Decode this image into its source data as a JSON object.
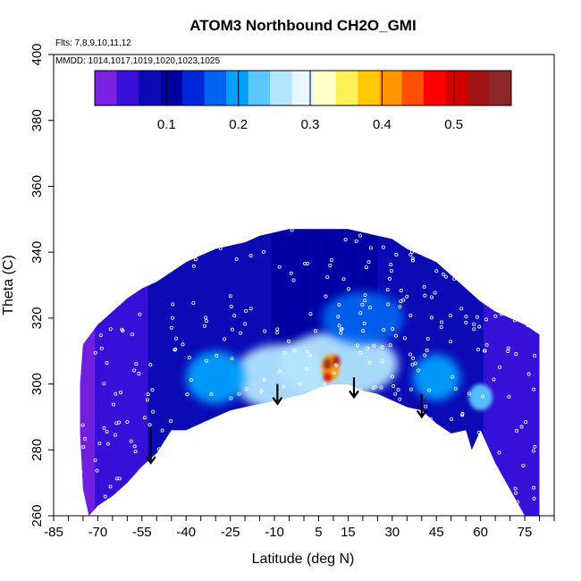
{
  "chart_data": {
    "type": "heatmap",
    "title": "ATOM3 Northbound CH2O_GMI",
    "flights_note": "Flts: 7,8,9,10,11,12",
    "dates_note": "MMDD: 1014,1017,1019,1020,1023,1025",
    "xlabel": "Latitude (deg N)",
    "ylabel": "Theta (C)",
    "xlim": [
      -85,
      85
    ],
    "ylim": [
      260,
      400
    ],
    "x_tick_labels": [
      "-85",
      "-70",
      "-55",
      "-40",
      "-25",
      "-10",
      "5",
      "15",
      "30",
      "45",
      "60",
      "75"
    ],
    "y_tick_labels": [
      "260",
      "280",
      "300",
      "320",
      "340",
      "360",
      "380",
      "400"
    ],
    "colorbar": {
      "range": [
        0,
        0.58
      ],
      "tick_labels": [
        "0.1",
        "0.2",
        "0.3",
        "0.4",
        "0.5"
      ],
      "colors": [
        "#7b1fe0",
        "#3a10d8",
        "#0a0ab4",
        "#0000a0",
        "#0028d8",
        "#0064f0",
        "#00a0ff",
        "#5ac8ff",
        "#b4e6ff",
        "#e8f6ff",
        "#ffffc8",
        "#fff05a",
        "#ffc800",
        "#ff9600",
        "#ff5000",
        "#ff0000",
        "#d20000",
        "#a01414",
        "#8c2828"
      ]
    },
    "boundary_top": [
      [
        -75,
        312
      ],
      [
        -70,
        318
      ],
      [
        -65,
        322
      ],
      [
        -60,
        326
      ],
      [
        -55,
        329
      ],
      [
        -50,
        331
      ],
      [
        -45,
        334
      ],
      [
        -40,
        337
      ],
      [
        -35,
        339
      ],
      [
        -30,
        341
      ],
      [
        -25,
        342
      ],
      [
        -20,
        343
      ],
      [
        -15,
        345
      ],
      [
        -10,
        346
      ],
      [
        -5,
        347
      ],
      [
        0,
        347
      ],
      [
        5,
        347
      ],
      [
        10,
        347
      ],
      [
        15,
        347
      ],
      [
        20,
        346
      ],
      [
        25,
        345
      ],
      [
        30,
        344
      ],
      [
        35,
        341
      ],
      [
        40,
        339
      ],
      [
        45,
        337
      ],
      [
        50,
        333
      ],
      [
        55,
        329
      ],
      [
        60,
        325
      ],
      [
        65,
        322
      ],
      [
        70,
        320
      ],
      [
        75,
        318
      ],
      [
        80,
        315
      ]
    ],
    "boundary_bottom": [
      [
        80,
        260
      ],
      [
        75,
        260
      ],
      [
        70,
        268
      ],
      [
        65,
        276
      ],
      [
        60,
        286
      ],
      [
        57,
        280
      ],
      [
        55,
        286
      ],
      [
        50,
        285
      ],
      [
        45,
        288
      ],
      [
        40,
        292
      ],
      [
        35,
        293
      ],
      [
        30,
        295
      ],
      [
        25,
        297
      ],
      [
        20,
        298
      ],
      [
        15,
        300
      ],
      [
        10,
        300
      ],
      [
        5,
        299
      ],
      [
        0,
        297
      ],
      [
        -5,
        296
      ],
      [
        -10,
        295
      ],
      [
        -15,
        294
      ],
      [
        -20,
        293
      ],
      [
        -25,
        292
      ],
      [
        -30,
        290
      ],
      [
        -35,
        288
      ],
      [
        -40,
        286
      ],
      [
        -45,
        286
      ],
      [
        -50,
        279
      ],
      [
        -55,
        275
      ],
      [
        -60,
        270
      ],
      [
        -65,
        266
      ],
      [
        -70,
        263
      ],
      [
        -73,
        260
      ],
      [
        -75,
        268
      ],
      [
        -76,
        285
      ],
      [
        -76,
        300
      ]
    ],
    "value_blobs": [
      {
        "lat": -8,
        "theta": 302,
        "rx": 16,
        "ry": 10,
        "value": 0.25
      },
      {
        "lat": 12,
        "theta": 306,
        "rx": 20,
        "ry": 10,
        "value": 0.27
      },
      {
        "lat": -30,
        "theta": 302,
        "rx": 10,
        "ry": 8,
        "value": 0.2
      },
      {
        "lat": 45,
        "theta": 302,
        "rx": 8,
        "ry": 7,
        "value": 0.2
      },
      {
        "lat": 60,
        "theta": 296,
        "rx": 4,
        "ry": 4,
        "value": 0.22
      },
      {
        "lat": 20,
        "theta": 320,
        "rx": 14,
        "ry": 8,
        "value": 0.16
      },
      {
        "lat": 9,
        "theta": 305,
        "rx": 3,
        "ry": 4,
        "value": 0.42
      },
      {
        "lat": 8,
        "theta": 306,
        "rx": 1.3,
        "ry": 1.6,
        "value": 0.55
      },
      {
        "lat": 11,
        "theta": 307,
        "rx": 1.2,
        "ry": 1.6,
        "value": 0.52
      },
      {
        "lat": 8,
        "theta": 302,
        "rx": 1.3,
        "ry": 1.3,
        "value": 0.5
      }
    ],
    "arrows": [
      {
        "lat": -52,
        "theta_top": 287,
        "theta_bottom": 276
      },
      {
        "lat": -9,
        "theta_top": 300,
        "theta_bottom": 294
      },
      {
        "lat": 17,
        "theta_top": 302,
        "theta_bottom": 296
      },
      {
        "lat": 40,
        "theta_top": 297,
        "theta_bottom": 290
      }
    ]
  }
}
